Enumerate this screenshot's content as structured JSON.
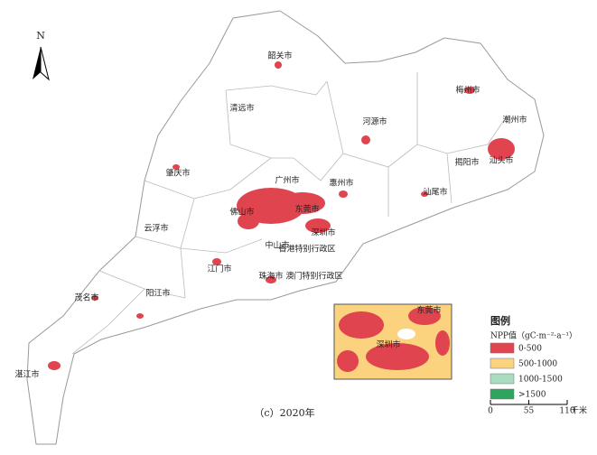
{
  "map": {
    "north": "N",
    "labels": [
      "韶关市",
      "清远市",
      "河源市",
      "梅州市",
      "潮州市",
      "揭阳市",
      "汕头市",
      "肇庆市",
      "广州市",
      "惠州市",
      "汕尾市",
      "佛山市",
      "东莞市",
      "深圳市",
      "云浮市",
      "中山市",
      "香港特别行政区",
      "江门市",
      "珠海市",
      "澳门特别行政区",
      "阳江市",
      "茂名市",
      "湛江市"
    ],
    "inset_labels": [
      "东莞市",
      "深圳市"
    ],
    "caption": "（c）2020年"
  },
  "legend": {
    "title": "图例",
    "unit": "NPP值（gC·m⁻²·a⁻¹）",
    "items": [
      {
        "label": "0-500",
        "color": "#e0454f"
      },
      {
        "label": "500-1000",
        "color": "#fbd27e"
      },
      {
        "label": "1000-1500",
        "color": "#a9dcc1"
      },
      {
        "label": ">1500",
        "color": "#2fa45e"
      }
    ]
  },
  "scale_bar": {
    "ticks": [
      0,
      55,
      110
    ],
    "unit": "千米"
  }
}
